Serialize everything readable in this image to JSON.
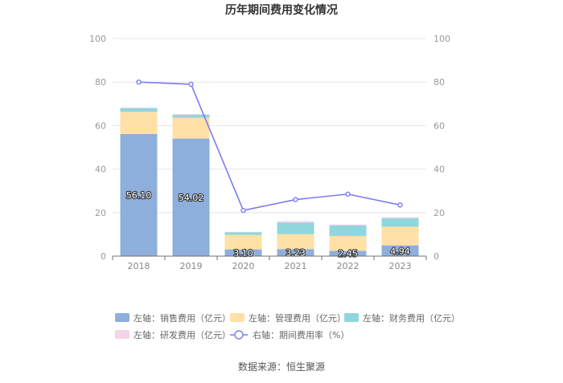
{
  "chart_data": {
    "type": "bar",
    "title": "历年期间费用变化情况",
    "categories": [
      "2018",
      "2019",
      "2020",
      "2021",
      "2022",
      "2023"
    ],
    "series": [
      {
        "name": "左轴：销售费用（亿元）",
        "axis": "left",
        "kind": "bar",
        "color": "#8eaedc",
        "values": [
          56.1,
          54.02,
          3.1,
          3.23,
          2.45,
          4.94
        ]
      },
      {
        "name": "左轴：管理费用（亿元）",
        "axis": "left",
        "kind": "bar",
        "color": "#ffe0a6",
        "values": [
          10.2,
          9.6,
          6.7,
          6.9,
          6.8,
          8.6
        ]
      },
      {
        "name": "左轴：财务费用（亿元）",
        "axis": "left",
        "kind": "bar",
        "color": "#8fd7dc",
        "values": [
          1.7,
          1.4,
          1.2,
          5.3,
          4.9,
          3.9
        ]
      },
      {
        "name": "左轴：研发费用（亿元）",
        "axis": "left",
        "kind": "bar",
        "color": "#f5d4ea",
        "values": [
          0.3,
          0.3,
          0.2,
          0.6,
          0.4,
          0.5
        ]
      },
      {
        "name": "右轴：期间费用率（%）",
        "axis": "right",
        "kind": "line",
        "color": "#7b7bef",
        "values": [
          80,
          79,
          21,
          26,
          28.5,
          23.5
        ]
      }
    ],
    "data_labels": [
      "56.10",
      "54.02",
      "3.10",
      "3.23",
      "2.45",
      "4.94"
    ],
    "y_left": {
      "ylim": [
        0,
        100
      ],
      "ticks": [
        "0",
        "20",
        "40",
        "60",
        "80",
        "100"
      ]
    },
    "y_right": {
      "ylim": [
        0,
        100
      ],
      "ticks": [
        "0",
        "20",
        "40",
        "60",
        "80",
        "100"
      ]
    },
    "grid": true,
    "legend_position": "bottom"
  },
  "source": "数据来源：恒生聚源"
}
